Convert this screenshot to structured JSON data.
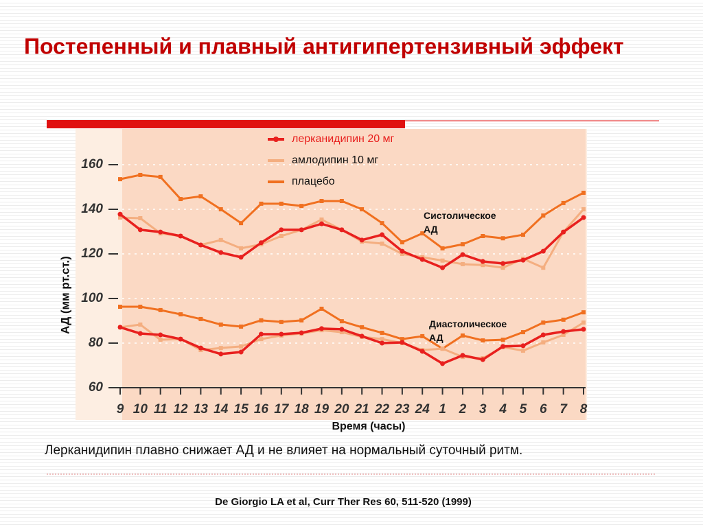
{
  "title": "Постепенный и плавный антигипертензивный эффект",
  "caption": "Лерканидипин плавно снижает АД и не влияет на нормальный суточный ритм.",
  "reference": "De Giorgio LA et al, Curr Ther Res 60, 511-520 (1999)",
  "chart_data": {
    "type": "line",
    "y_label": "АД (мм рт.ст.)",
    "x_label": "Время (часы)",
    "annotations": [
      "Систолическое АД",
      "Диастолическое АД"
    ],
    "categories": [
      "9",
      "10",
      "11",
      "12",
      "13",
      "14",
      "15",
      "16",
      "17",
      "18",
      "19",
      "20",
      "21",
      "22",
      "23",
      "24",
      "1",
      "2",
      "3",
      "4",
      "5",
      "6",
      "7",
      "8"
    ],
    "ylim": [
      60,
      176
    ],
    "yticks": [
      60,
      80,
      100,
      120,
      140,
      160
    ],
    "grid": true,
    "series": [
      {
        "name": "лерканидипин 20 мг",
        "color": "#e8201e",
        "systolic": [
          137.8,
          130.8,
          129.8,
          128,
          124,
          120.6,
          118.5,
          125,
          130.8,
          130.8,
          133.5,
          130.8,
          126.2,
          128.6,
          121.2,
          117.5,
          113.8,
          119.7,
          116.6,
          115.7,
          117.2,
          121.2,
          129.8,
          136.3
        ],
        "diastolic": [
          87.1,
          84.3,
          83.7,
          81.8,
          77.8,
          75.1,
          76,
          84,
          84,
          84.6,
          86.5,
          86.2,
          83.1,
          80,
          80.3,
          76.3,
          70.8,
          74.5,
          72.6,
          78.5,
          78.8,
          83.7,
          85.2,
          86.2
        ]
      },
      {
        "name": "амлодипин 10 мг",
        "color": "#f4ae80",
        "systolic": [
          136.3,
          136,
          129.2,
          128,
          124,
          126.2,
          122.5,
          124.3,
          128,
          130.8,
          135.4,
          130.8,
          125.5,
          124.6,
          120,
          118.5,
          117,
          115.4,
          115,
          113.8,
          117.8,
          113.8,
          129.8,
          140
        ],
        "diastolic": [
          87.1,
          88.3,
          81.5,
          81.8,
          76.9,
          77.8,
          78.5,
          81.8,
          83.4,
          84.3,
          85.8,
          84.9,
          82.8,
          81.8,
          80,
          76.9,
          77.5,
          73.8,
          73.2,
          78.2,
          76.6,
          80.3,
          83.7,
          89.2
        ]
      },
      {
        "name": "плацебо",
        "color": "#f07020",
        "systolic": [
          153.5,
          155.4,
          154.5,
          144.6,
          145.8,
          140,
          133.8,
          142.5,
          142.5,
          141.5,
          143.7,
          143.7,
          140,
          133.8,
          125.2,
          129.2,
          122.5,
          124.3,
          128,
          127,
          128.6,
          137.2,
          142.8,
          147.4
        ],
        "diastolic": [
          96.3,
          96.3,
          94.8,
          92.9,
          90.8,
          88.3,
          87.4,
          90.2,
          89.5,
          90.2,
          95.4,
          89.8,
          87.1,
          84.6,
          81.8,
          83.1,
          77.5,
          83.4,
          81.2,
          81.5,
          84.9,
          89.2,
          90.5,
          93.8
        ]
      }
    ]
  }
}
